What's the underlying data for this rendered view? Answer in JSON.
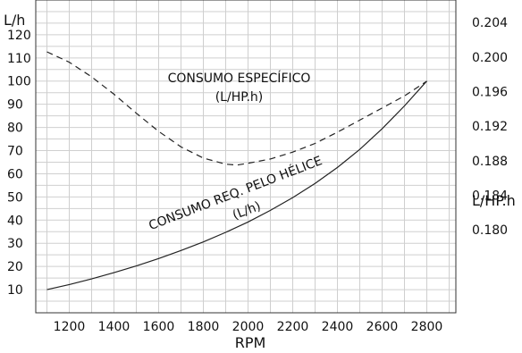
{
  "chart_data": {
    "type": "line",
    "xlabel": "RPM",
    "ylabel_left": "L/h",
    "ylabel_right": "L/HP.h",
    "xlim": [
      1050,
      2930
    ],
    "ylim_left": [
      0,
      135
    ],
    "ylim_right": [
      0.1704,
      0.2066
    ],
    "x_ticks": [
      1200,
      1400,
      1600,
      1800,
      2000,
      2200,
      2400,
      2600,
      2800
    ],
    "y_left_ticks": [
      10,
      20,
      30,
      40,
      50,
      60,
      70,
      80,
      90,
      100,
      110,
      120
    ],
    "y_right_ticks": [
      0.18,
      0.184,
      0.188,
      0.192,
      0.196,
      0.2,
      0.204
    ],
    "y_right_tick_labels": [
      "0.180",
      "0.184",
      "0.188",
      "0.192",
      "0.196",
      "0.200",
      "0.204"
    ],
    "grid": true,
    "series": [
      {
        "name": "CONSUMO REQ. PELO HÉLICE (L/h)",
        "axis": "left",
        "style": "solid",
        "x": [
          1100,
          1200,
          1300,
          1400,
          1500,
          1600,
          1700,
          1800,
          1900,
          2000,
          2100,
          2200,
          2300,
          2400,
          2500,
          2600,
          2700,
          2800
        ],
        "y": [
          10,
          12.2,
          14.6,
          17.3,
          20.2,
          23.4,
          26.9,
          30.6,
          34.7,
          39.2,
          44.2,
          49.7,
          55.8,
          62.7,
          70.5,
          79.4,
          89.3,
          100
        ]
      },
      {
        "name": "CONSUMO ESPECÍFICO (L/HP.h)",
        "axis": "right",
        "style": "dashed",
        "x": [
          1100,
          1200,
          1300,
          1400,
          1500,
          1600,
          1700,
          1800,
          1900,
          1950,
          2000,
          2100,
          2200,
          2300,
          2400,
          2500,
          2600,
          2700,
          2800
        ],
        "y": [
          0.2006,
          0.1994,
          0.1977,
          0.1957,
          0.1935,
          0.1914,
          0.1896,
          0.1883,
          0.1876,
          0.1875,
          0.1877,
          0.1882,
          0.189,
          0.19,
          0.1913,
          0.1927,
          0.1941,
          0.1955,
          0.1972
        ]
      }
    ],
    "annotations": [
      {
        "text": "CONSUMO ESPECÍFICO",
        "x": 1960,
        "y_left": 99.5
      },
      {
        "text": "(L/HP.h)",
        "x": 1960,
        "y_left": 91.5
      },
      {
        "text": "CONSUMO REQ. PELO HÉLICE",
        "x": 1950,
        "y_left": 50,
        "rotate": -21
      },
      {
        "text": "(L/h)",
        "x": 2000,
        "y_left": 42.5,
        "rotate": -21
      }
    ]
  }
}
